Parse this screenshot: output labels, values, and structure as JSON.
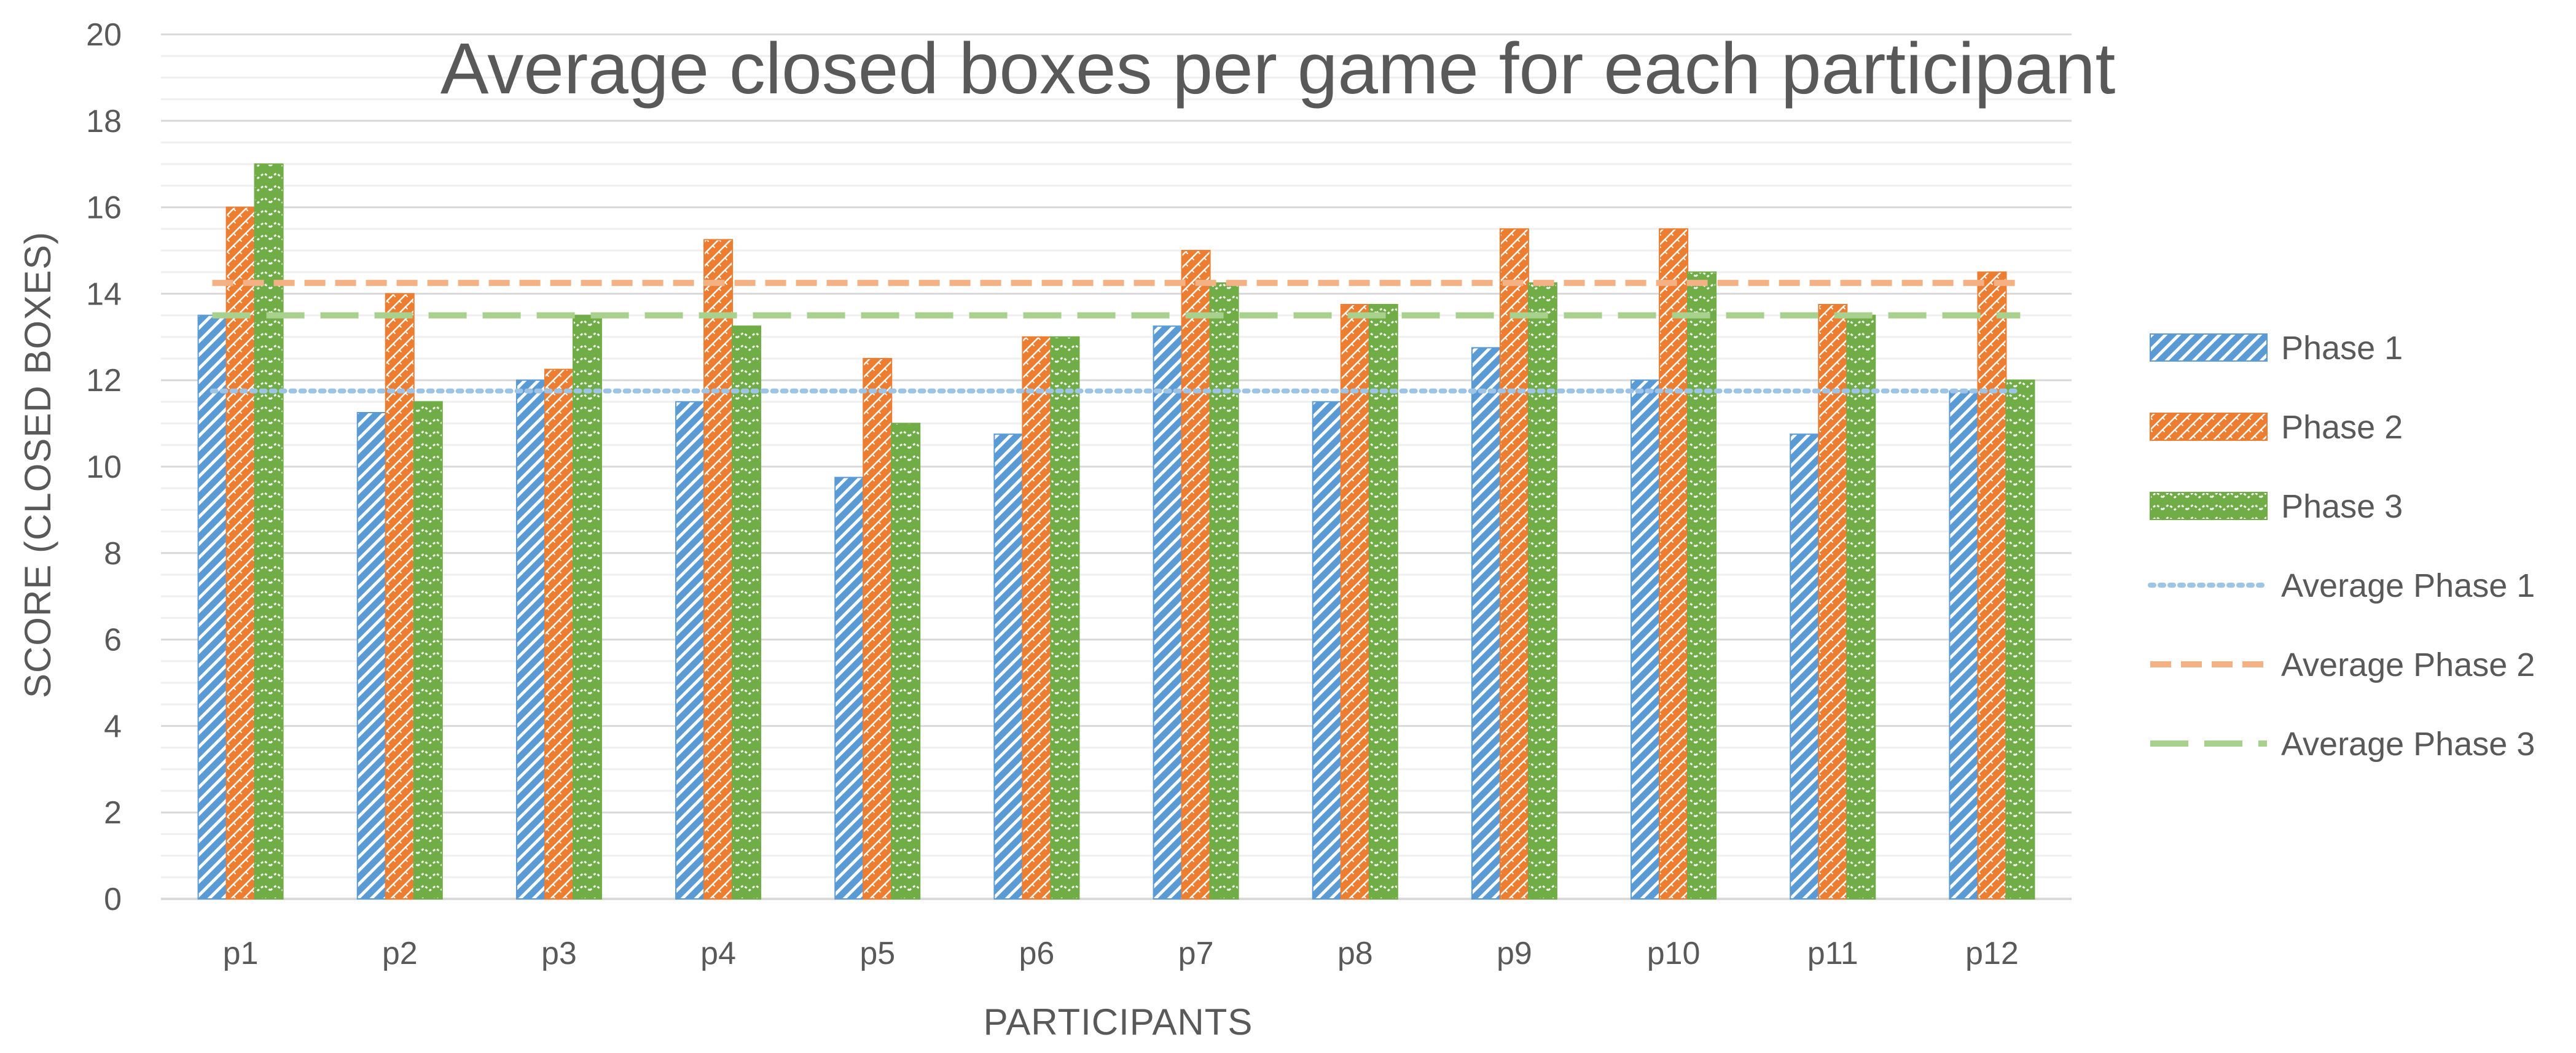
{
  "chart_data": {
    "type": "bar",
    "title": "Average closed boxes per game for each participant",
    "xlabel": "PARTICIPANTS",
    "ylabel": "SCORE (CLOSED BOXES)",
    "ylim": [
      0,
      20
    ],
    "yticks": [
      "0",
      "2",
      "4",
      "6",
      "8",
      "10",
      "12",
      "14",
      "16",
      "18",
      "20"
    ],
    "ytick_values": [
      0,
      2,
      4,
      6,
      8,
      10,
      12,
      14,
      16,
      18,
      20
    ],
    "minor_step": 0.5,
    "grid": true,
    "legend_position": "right",
    "categories": [
      "p1",
      "p2",
      "p3",
      "p4",
      "p5",
      "p6",
      "p7",
      "p8",
      "p9",
      "p10",
      "p11",
      "p12"
    ],
    "series": [
      {
        "name": "Phase 1",
        "color": "#5b9bd5",
        "pattern": "wide-upward-diagonal",
        "values": [
          13.5,
          11.25,
          12,
          11.5,
          9.75,
          10.75,
          13.25,
          11.5,
          12.75,
          12,
          10.75,
          11.75
        ]
      },
      {
        "name": "Phase 2",
        "color": "#ed7d31",
        "pattern": "diagonal-brick",
        "values": [
          16,
          14,
          12.25,
          15.25,
          12.5,
          13,
          15,
          13.75,
          15.5,
          15.5,
          13.75,
          14.5
        ]
      },
      {
        "name": "Phase 3",
        "color": "#70ad47",
        "pattern": "zigzag",
        "values": [
          17,
          11.5,
          13.5,
          13.25,
          11,
          13,
          14.25,
          13.75,
          14.25,
          14.5,
          13.5,
          12
        ]
      }
    ],
    "average_lines": [
      {
        "name": "Average Phase 1",
        "value": 11.75,
        "color": "#9dc3e6",
        "style": "dotted"
      },
      {
        "name": "Average Phase 2",
        "value": 14.25,
        "color": "#f4b183",
        "style": "dashed"
      },
      {
        "name": "Average Phase 3",
        "value": 13.5,
        "color": "#a9d18e",
        "style": "long-dash"
      }
    ]
  }
}
